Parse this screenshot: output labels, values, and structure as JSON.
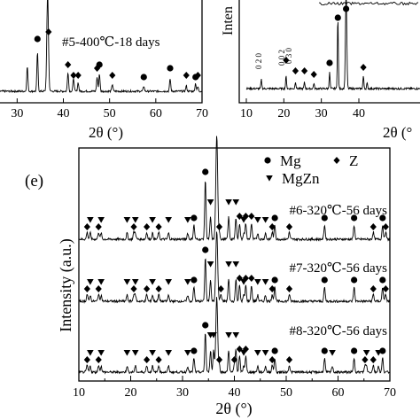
{
  "figure": {
    "background": "#ffffff",
    "ink": "#000000",
    "panel_label_e": "(e)"
  },
  "chart_data": [
    {
      "type": "line",
      "panel": "top-left (partial)",
      "xlabel": "2θ (°)",
      "ylabel": "",
      "xlim": [
        10,
        70
      ],
      "x_ticks": [
        "30",
        "40",
        "50",
        "60",
        "70"
      ],
      "series": [
        {
          "name": "#5-400℃-18 days"
        }
      ],
      "peaks_Mg": [
        34.4,
        47.8,
        57.4,
        63.1,
        68.6
      ],
      "peaks_Z": [
        36.8,
        41.0,
        42.2,
        43.2,
        47.3,
        50.6,
        66.6,
        69.1
      ]
    },
    {
      "type": "line",
      "panel": "top-right (partial)",
      "xlabel": "2θ (°",
      "ylabel": "Inten",
      "xlim": [
        10,
        70
      ],
      "x_ticks": [
        "10",
        "20",
        "30",
        "40"
      ],
      "annotations": [
        "0 2 0",
        "0 0 2",
        "0 3 0"
      ],
      "peaks_Mg": [
        32.2,
        34.4,
        36.6
      ],
      "peaks_Z": [
        20.6,
        23.1,
        25.5,
        28.0,
        41.2
      ]
    },
    {
      "type": "line",
      "panel": "(e)",
      "xlabel": "2θ (°)",
      "ylabel": "Intensity (a.u.)",
      "xlim": [
        10,
        70
      ],
      "x_ticks": [
        "10",
        "20",
        "30",
        "40",
        "50",
        "60",
        "70"
      ],
      "legend": [
        {
          "label": "Mg",
          "marker": "circle"
        },
        {
          "label": "Z",
          "marker": "diamond"
        },
        {
          "label": "MgZn",
          "marker": "triangle-down"
        }
      ],
      "series": [
        {
          "name": "#6-320℃-56 days",
          "peaks_Mg": [
            32.2,
            34.4,
            36.6,
            47.8,
            57.4,
            63.1,
            68.6
          ],
          "peaks_Z": [
            11.6,
            13.8,
            20.6,
            23.1,
            25.4,
            37.1,
            41.0,
            42.2,
            43.3,
            47.3,
            50.6,
            66.8,
            69.2
          ],
          "peaks_MgZn": [
            12.2,
            14.3,
            19.3,
            20.9,
            24.2,
            27.3,
            31.0,
            35.4,
            38.9,
            40.3,
            41.8,
            44.5,
            46.0
          ]
        },
        {
          "name": "#7-320℃-56 days",
          "peaks_Mg": [
            32.2,
            34.4,
            36.6,
            47.8,
            57.4,
            63.1,
            68.6
          ],
          "peaks_Z": [
            11.6,
            13.8,
            20.6,
            23.1,
            25.4,
            37.4,
            41.0,
            42.2,
            43.3,
            47.3,
            50.6,
            66.8,
            69.2
          ],
          "peaks_MgZn": [
            12.2,
            14.3,
            19.3,
            20.9,
            24.2,
            27.3,
            31.0,
            35.4,
            38.9,
            40.3,
            41.8,
            44.5,
            46.0
          ]
        },
        {
          "name": "#8-320℃-56 days",
          "peaks_Mg": [
            32.2,
            34.4,
            36.6,
            47.8,
            57.4,
            63.1,
            68.6
          ],
          "peaks_Z": [
            11.6,
            13.8,
            23.1,
            25.4,
            37.1,
            40.0,
            41.0,
            42.2,
            47.3,
            50.6,
            65.2,
            66.8
          ],
          "peaks_MgZn": [
            12.2,
            14.3,
            19.3,
            20.9,
            24.2,
            27.3,
            31.0,
            35.4,
            36.0,
            38.9,
            40.3,
            41.8,
            44.5,
            46.0,
            58.9,
            65.5,
            67.8
          ]
        }
      ]
    }
  ]
}
